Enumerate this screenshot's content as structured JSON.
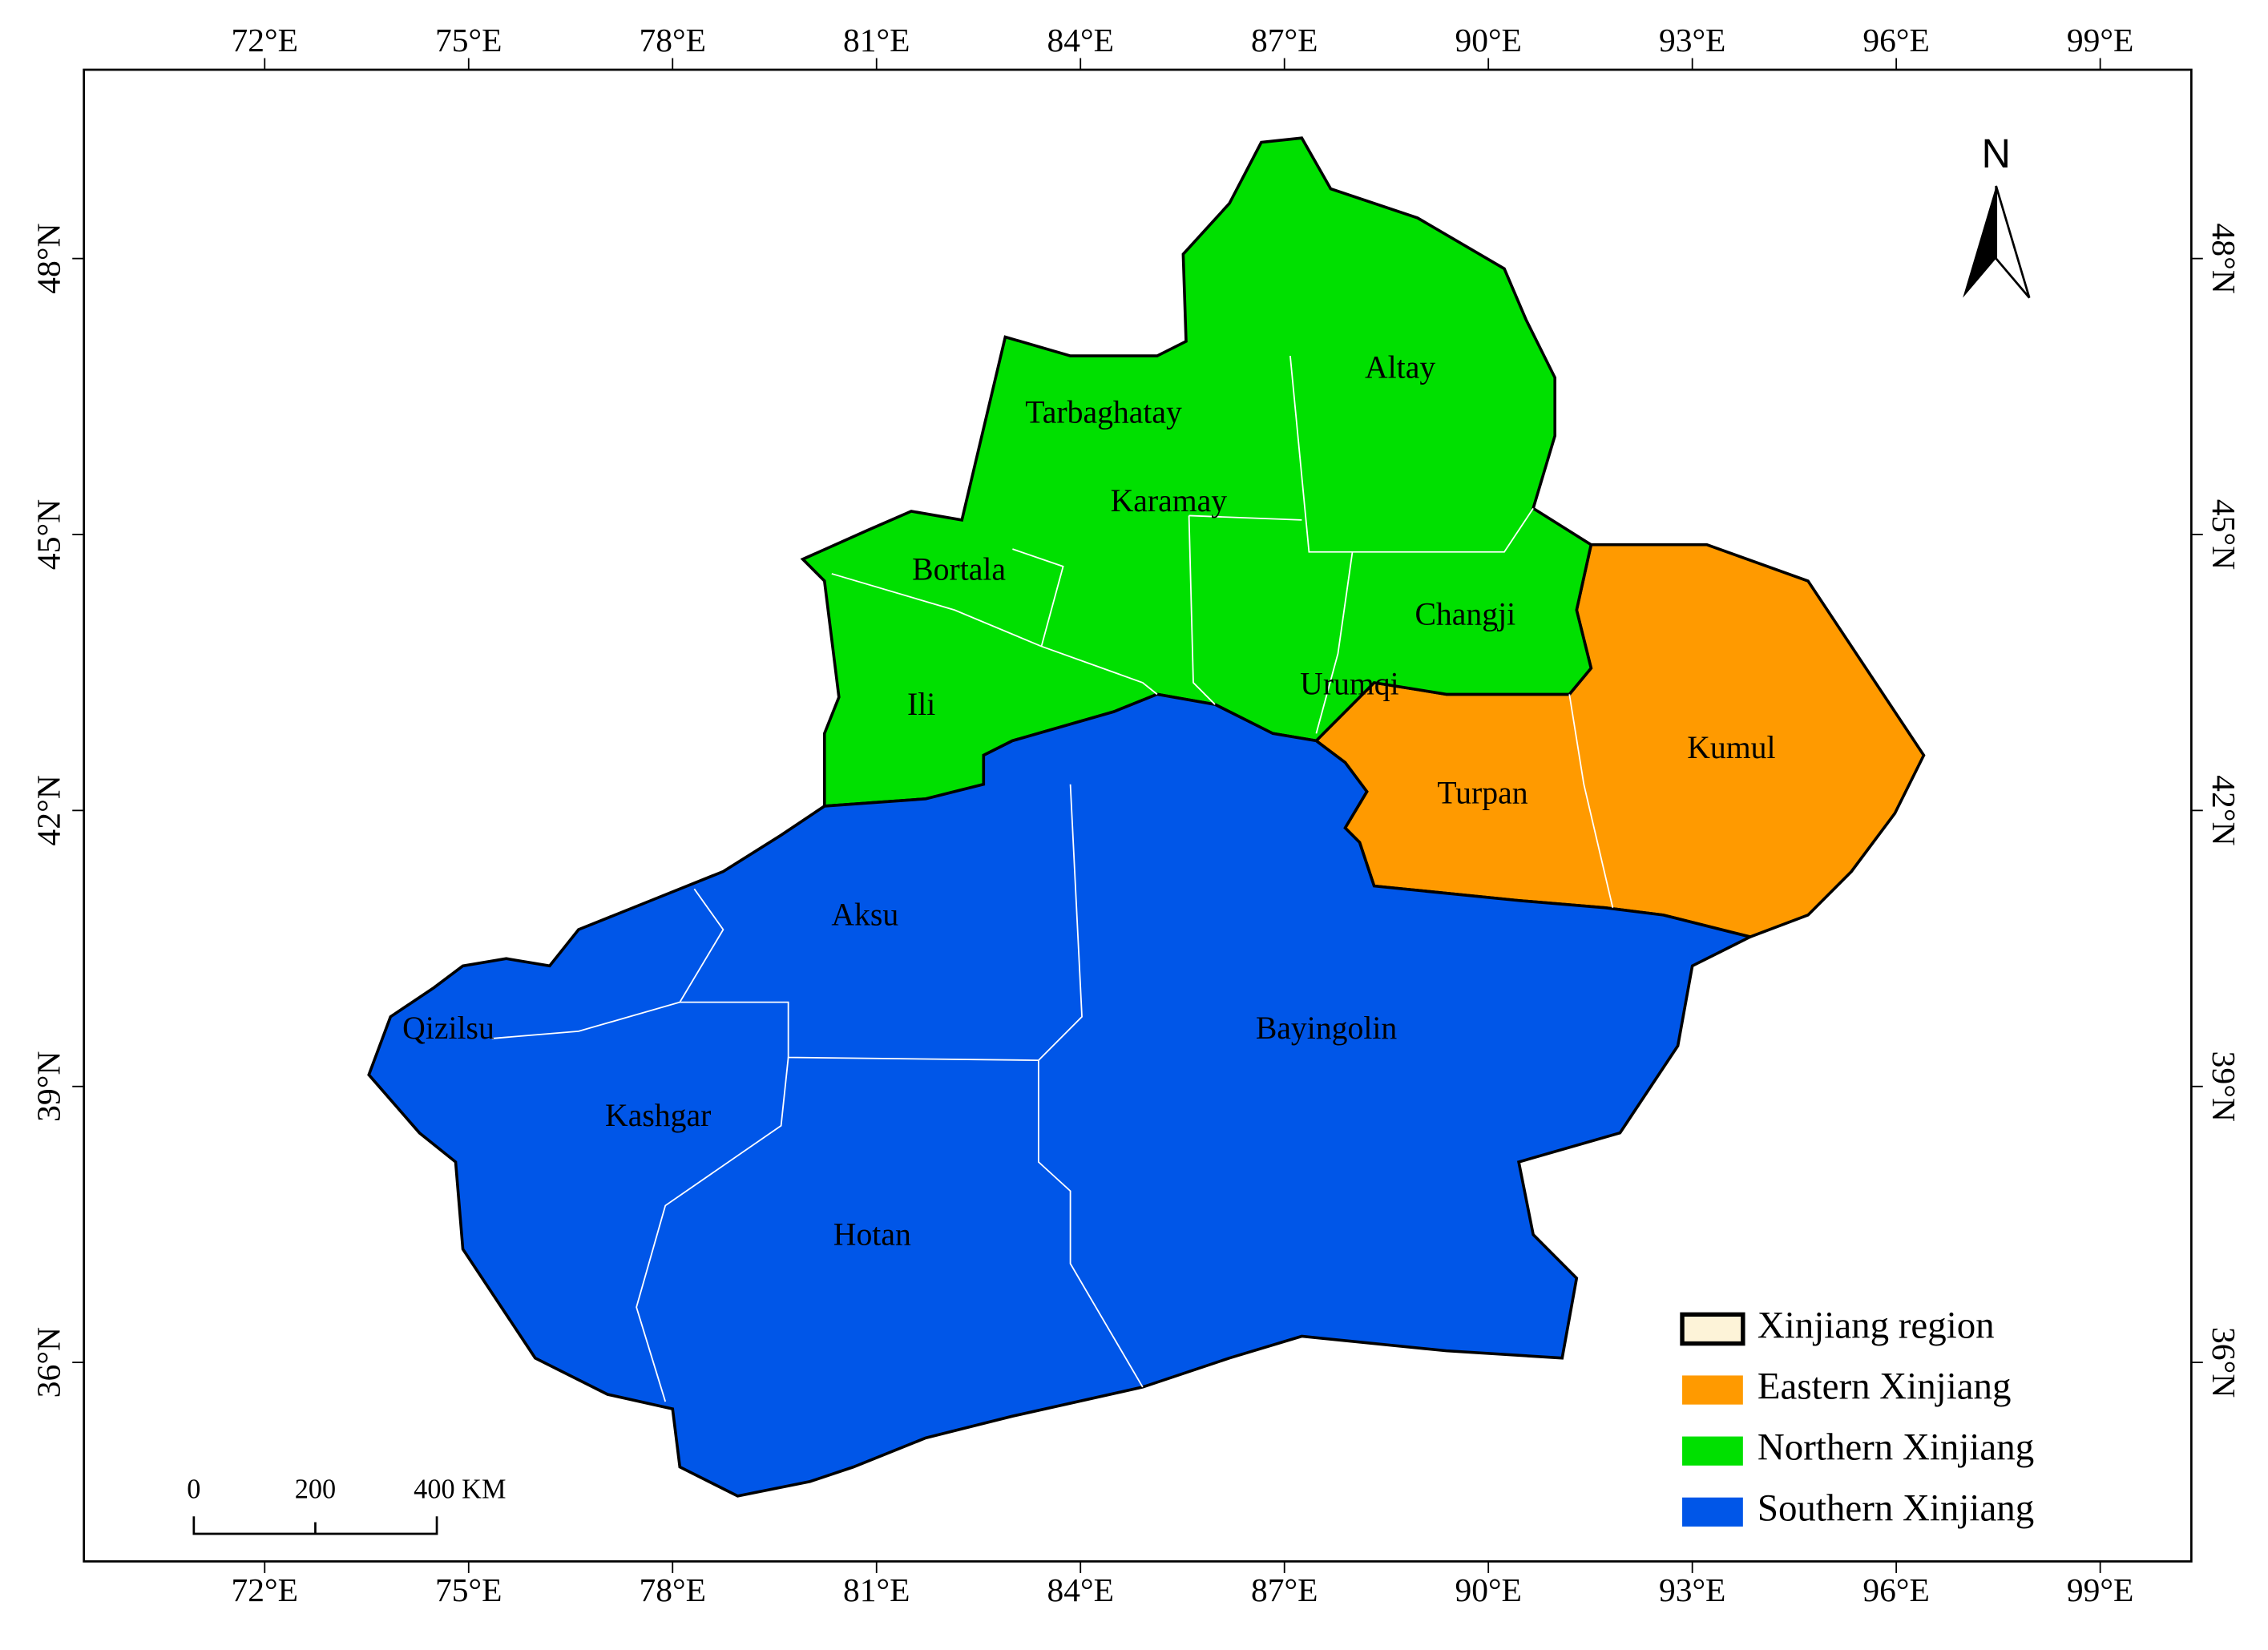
{
  "map": {
    "lon_ticks": [
      "72°E",
      "75°E",
      "78°E",
      "81°E",
      "84°E",
      "87°E",
      "90°E",
      "93°E",
      "96°E",
      "99°E"
    ],
    "lat_ticks": [
      "48°N",
      "45°N",
      "42°N",
      "39°N",
      "36°N"
    ],
    "north": "N",
    "legend": [
      {
        "name": "Xinjiang region",
        "color": "#fdf3d8",
        "regions": []
      },
      {
        "name": "Eastern Xinjiang",
        "color": "#ff9a00",
        "regions": [
          "Turpan",
          "Kumul"
        ]
      },
      {
        "name": "Northern Xinjiang",
        "color": "#00e000",
        "regions": [
          "Altay",
          "Tarbaghatay",
          "Karamay",
          "Bortala",
          "Ili",
          "Changji",
          "Urumqi"
        ]
      },
      {
        "name": "Southern Xinjiang",
        "color": "#0056e8",
        "regions": [
          "Aksu",
          "Bayingolin",
          "Qizilsu",
          "Kashgar",
          "Hotan"
        ]
      }
    ],
    "scale_bar": [
      "0",
      "200",
      "400 KM"
    ]
  }
}
